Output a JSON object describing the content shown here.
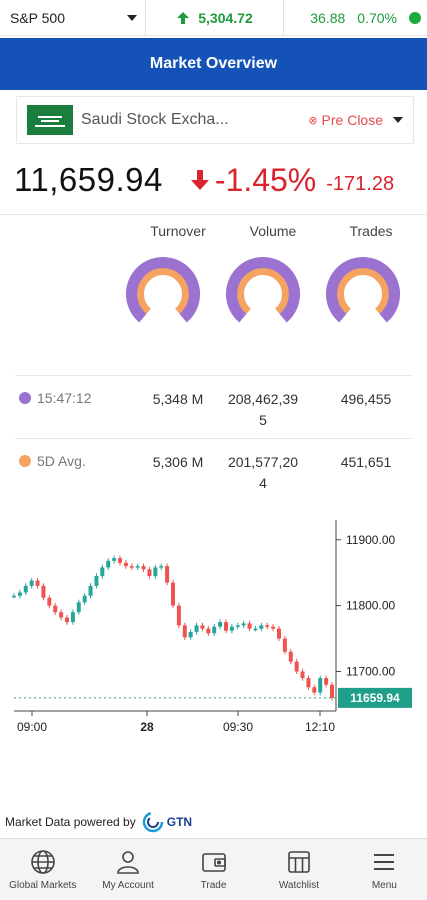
{
  "ticker": {
    "index_name": "S&P 500",
    "price": "5,304.72",
    "change": "36.88",
    "change_pct": "0.70%",
    "up_color": "#1e9b3a"
  },
  "header": {
    "title": "Market Overview"
  },
  "exchange": {
    "name": "Saudi Stock Excha...",
    "status": "Pre Close",
    "flag_icon": "saudi-flag-icon"
  },
  "index": {
    "value": "11,659.94",
    "change_pct": "-1.45%",
    "change_abs": "-171.28",
    "down_color": "#d9232d"
  },
  "stats": {
    "columns": [
      "Turnover",
      "Volume",
      "Trades"
    ],
    "gauges": [
      {
        "name": "turnover",
        "fill_fraction": 0.5
      },
      {
        "name": "volume",
        "fill_fraction": 0.52
      },
      {
        "name": "trades",
        "fill_fraction": 0.55
      }
    ],
    "rows": [
      {
        "label": "15:47:12",
        "color": "#9b72cf",
        "turnover": "5,348 M",
        "volume_line1": "208,462,39",
        "volume_line2": "5",
        "trades": "496,455"
      },
      {
        "label": "5D Avg.",
        "color": "#f4a460",
        "turnover": "5,306 M",
        "volume_line1": "201,577,20",
        "volume_line2": "4",
        "trades": "451,651"
      }
    ]
  },
  "chart_data": {
    "type": "line",
    "x_ticks": [
      "09:00",
      "28",
      "09:30",
      "12:10"
    ],
    "y_ticks": [
      "11900.00",
      "11800.00",
      "11700.00"
    ],
    "ylim": [
      11640,
      11930
    ],
    "last_price_label": "11659.94",
    "last_price": 11659.94,
    "series": [
      {
        "values": [
          11815,
          11820,
          11830,
          11838,
          11830,
          11812,
          11800,
          11790,
          11782,
          11775,
          11790,
          11805,
          11815,
          11830,
          11845,
          11858,
          11868,
          11872,
          11865,
          11860,
          11858,
          11860,
          11855,
          11845,
          11858,
          11860,
          11835,
          11800,
          11770,
          11752,
          11760,
          11770,
          11765,
          11758,
          11768,
          11775,
          11762,
          11768,
          11770,
          11773,
          11765,
          11765,
          11770,
          11768,
          11765,
          11750,
          11730,
          11715,
          11700,
          11690,
          11676,
          11668,
          11690,
          11680,
          11660
        ]
      }
    ]
  },
  "powered_by": {
    "text": "Market Data powered by",
    "brand": "GTN"
  },
  "nav": [
    {
      "label": "Global Markets",
      "icon": "globe-icon"
    },
    {
      "label": "My Account",
      "icon": "user-icon"
    },
    {
      "label": "Trade",
      "icon": "wallet-icon"
    },
    {
      "label": "Watchlist",
      "icon": "watchlist-icon"
    },
    {
      "label": "Menu",
      "icon": "menu-icon"
    }
  ]
}
